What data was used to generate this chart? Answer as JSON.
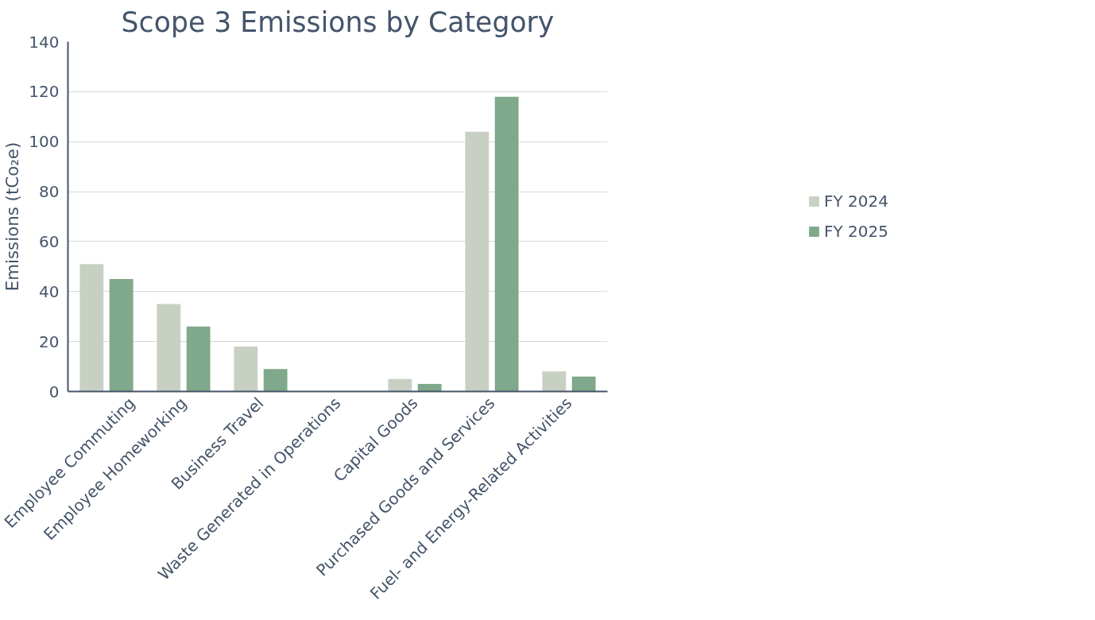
{
  "chart_data": {
    "type": "bar",
    "title": "Scope 3 Emissions by Category",
    "ylabel": "Emissions (tCo₂e)",
    "categories": [
      "Employee Commuting",
      "Employee Homeworking",
      "Business Travel",
      "Waste Generated in Operations",
      "Capital Goods",
      "Purchased Goods and Services",
      "Fuel- and Energy-Related Activities"
    ],
    "series": [
      {
        "name": "FY 2024",
        "color": "#c8d0c4",
        "values": [
          51,
          35,
          18,
          0,
          5,
          104,
          8
        ]
      },
      {
        "name": "FY 2025",
        "color": "#80a88a",
        "values": [
          45,
          26,
          9,
          0,
          3,
          118,
          6
        ]
      }
    ],
    "ylim": [
      0,
      140
    ],
    "yticks": [
      0,
      20,
      40,
      60,
      80,
      100,
      120,
      140
    ],
    "grid": "y",
    "legend": "right"
  }
}
